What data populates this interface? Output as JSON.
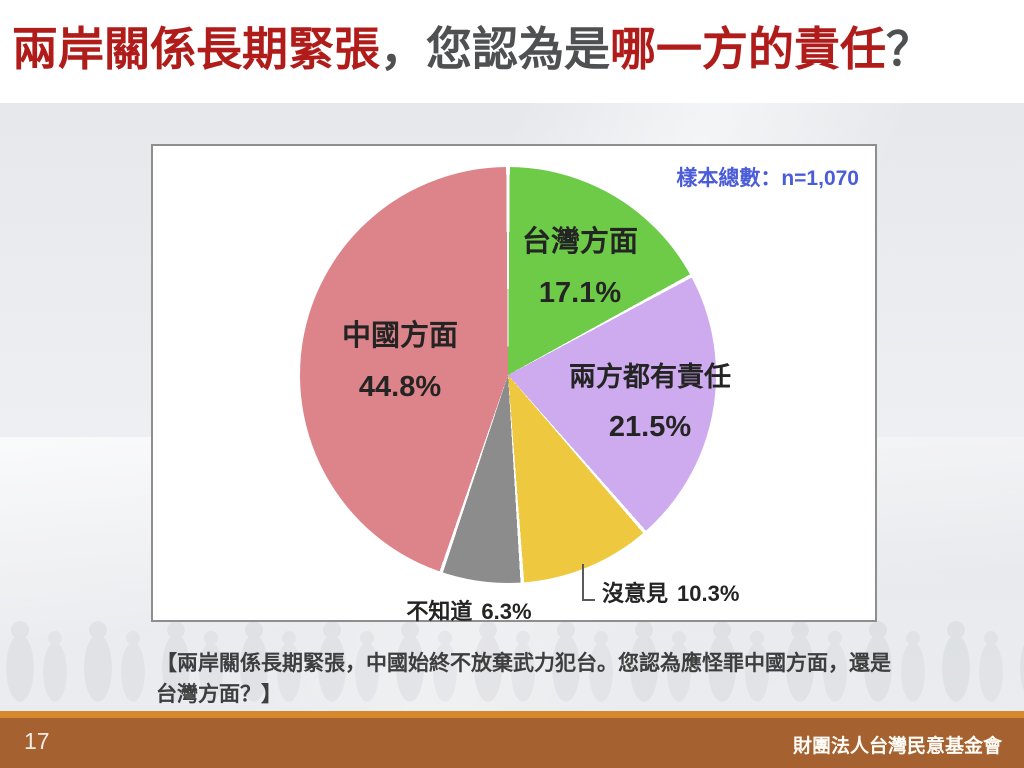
{
  "slide": {
    "title": {
      "seg1": "兩岸關係長期緊張",
      "seg2": "，您認為是",
      "seg3": "哪一方的責任",
      "seg4": "？"
    },
    "caption": "【兩岸關係長期緊張，中國始終不放棄武力犯台。您認為應怪罪中國方面，還是台灣方面？】",
    "footer": {
      "page_number": "17",
      "organization": "財團法人台灣民意基金會"
    }
  },
  "colors": {
    "title_red": "#B01C1A",
    "title_gray": "#4F5051",
    "sample_note_blue": "#4A5CD8",
    "label_dark": "#242424",
    "footer_brown": "#A5612F",
    "footer_stripe_orange": "#D6892C",
    "panel_border_gray": "#8E8E8E"
  },
  "chart_data": {
    "type": "pie",
    "title": "兩岸關係長期緊張，您認為是哪一方的責任？",
    "sample_note": "樣本總數：n=1,070",
    "categories": [
      "台灣方面",
      "兩方都有責任",
      "沒意見",
      "不知道",
      "中國方面"
    ],
    "values": [
      17.1,
      21.5,
      10.3,
      6.3,
      44.8
    ],
    "pct_labels": [
      "17.1%",
      "21.5%",
      "10.3%",
      "6.3%",
      "44.8%"
    ],
    "colors": [
      "#6DCB48",
      "#CDABEE",
      "#EEC93F",
      "#8C8C8C",
      "#DC848A"
    ],
    "start_angle_deg": 0,
    "direction": "clockwise",
    "slice_gap_white": true,
    "legend_position": "none",
    "label_layout": "inside-for-large-slices, outside-below-for-沒意見-and-不知道"
  }
}
